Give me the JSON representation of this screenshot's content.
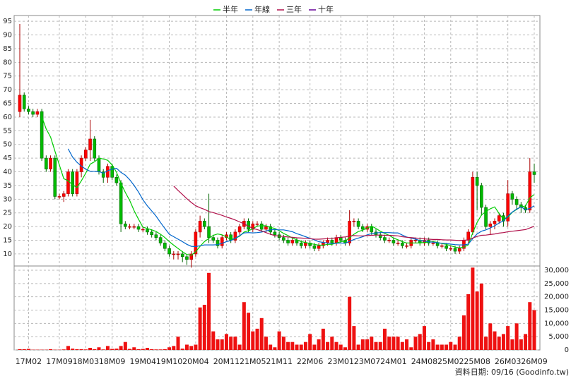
{
  "chart_data": {
    "type": "candlestick",
    "legend": "top",
    "grid": true,
    "source": "資料日期: 09/16 (Goodinfo.tw)",
    "up_color": "#ff0000",
    "down_color": "#00bb00",
    "volume_color": "#ee1111",
    "ylim": [
      5.6,
      97.1
    ],
    "yticks": [
      10,
      15,
      20,
      25,
      30,
      35,
      40,
      45,
      50,
      55,
      60,
      65,
      70,
      75,
      80,
      85,
      90,
      95
    ],
    "y2lim": [
      0,
      31600
    ],
    "y2ticks": [
      0,
      {
        "value": 5000,
        "label": "5,000"
      },
      {
        "value": 10000,
        "label": "10,000"
      },
      {
        "value": 15000,
        "label": "15,000"
      },
      {
        "value": 20000,
        "label": "20,000"
      },
      {
        "value": 25000,
        "label": "25,000"
      },
      {
        "value": 30000,
        "label": "30,000"
      }
    ],
    "categories": [
      null,
      null,
      "17M02",
      null,
      null,
      null,
      null,
      null,
      null,
      "17M09",
      null,
      null,
      null,
      null,
      null,
      "18M03",
      null,
      null,
      null,
      null,
      null,
      "18M09",
      null,
      null,
      null,
      null,
      null,
      null,
      "19M04",
      null,
      null,
      null,
      null,
      null,
      "19M10",
      null,
      null,
      null,
      null,
      null,
      "20M04",
      null,
      null,
      null,
      null,
      null,
      null,
      "20M11",
      null,
      null,
      null,
      null,
      null,
      "21M05",
      null,
      null,
      null,
      null,
      null,
      "21M11",
      null,
      null,
      null,
      null,
      null,
      null,
      "22M06",
      null,
      null,
      null,
      null,
      null,
      null,
      "23M01",
      null,
      null,
      null,
      null,
      null,
      "23M07",
      null,
      null,
      null,
      null,
      null,
      "24M01",
      null,
      null,
      null,
      null,
      null,
      null,
      "24M08",
      null,
      null,
      null,
      null,
      null,
      "25M02",
      null,
      null,
      null,
      null,
      null,
      "25M08",
      null,
      null,
      null,
      null,
      null,
      null,
      "26M03",
      null,
      null,
      null,
      null,
      null,
      "26M09"
    ],
    "open": [
      62,
      68,
      63,
      62,
      61,
      62,
      45,
      41,
      45,
      31,
      31,
      32,
      40,
      32,
      40,
      45,
      48,
      52,
      45,
      40,
      38,
      42,
      38,
      36,
      21,
      20,
      20,
      20,
      19,
      19,
      18,
      17,
      16,
      14,
      12,
      10,
      10,
      10,
      9,
      8,
      10,
      18,
      22,
      20,
      16,
      15,
      13,
      16,
      17,
      15,
      18,
      20,
      22,
      19,
      21,
      21,
      19,
      20,
      18,
      17,
      16,
      15,
      14,
      15,
      14,
      13,
      14,
      13,
      12,
      13,
      14,
      15,
      14,
      16,
      15,
      14,
      22,
      22,
      20,
      19,
      20,
      18,
      17,
      16,
      15,
      15,
      14,
      14,
      13,
      13,
      15,
      15,
      14,
      15,
      14,
      14,
      13,
      13,
      12,
      12,
      11,
      12,
      15,
      18,
      38,
      35,
      27,
      20,
      21,
      22,
      24,
      22,
      32,
      30,
      28,
      27,
      26,
      40
    ],
    "high": [
      94,
      69,
      64,
      63,
      63,
      63,
      46,
      46,
      46,
      32,
      33,
      41,
      41,
      41,
      46,
      49,
      59,
      53,
      46,
      41,
      43,
      43,
      39,
      37,
      22,
      21,
      21,
      21,
      20,
      20,
      19,
      18,
      17,
      15,
      13,
      11,
      11,
      11,
      10,
      11,
      19,
      24,
      23,
      32,
      17,
      16,
      17,
      18,
      18,
      19,
      21,
      23,
      23,
      22,
      22,
      22,
      21,
      21,
      19,
      18,
      17,
      16,
      16,
      16,
      15,
      15,
      15,
      14,
      14,
      15,
      16,
      16,
      17,
      17,
      16,
      26,
      23,
      23,
      21,
      21,
      21,
      19,
      18,
      17,
      16,
      16,
      15,
      15,
      14,
      16,
      16,
      16,
      16,
      16,
      15,
      15,
      14,
      14,
      13,
      13,
      13,
      16,
      19,
      40,
      40,
      36,
      28,
      22,
      23,
      25,
      25,
      37,
      33,
      31,
      29,
      28,
      45,
      43
    ],
    "low": [
      60,
      62,
      61,
      60,
      60,
      44,
      40,
      40,
      30,
      30,
      29,
      31,
      31,
      31,
      38,
      44,
      44,
      44,
      39,
      36,
      36,
      37,
      35,
      18,
      19,
      19,
      19,
      18,
      18,
      17,
      16,
      15,
      13,
      11,
      9,
      8,
      8,
      7,
      6,
      5,
      9,
      16,
      19,
      14,
      14,
      12,
      12,
      15,
      14,
      14,
      17,
      19,
      18,
      18,
      20,
      18,
      18,
      17,
      16,
      15,
      14,
      13,
      13,
      13,
      12,
      12,
      12,
      11,
      11,
      12,
      13,
      13,
      13,
      14,
      13,
      13,
      20,
      19,
      18,
      18,
      17,
      16,
      15,
      14,
      14,
      13,
      13,
      12,
      12,
      12,
      14,
      13,
      13,
      13,
      13,
      12,
      12,
      11,
      11,
      10,
      10,
      11,
      14,
      17,
      26,
      24,
      19,
      17,
      19,
      21,
      20,
      20,
      28,
      26,
      25,
      25,
      25,
      36
    ],
    "close": [
      68,
      63,
      62,
      61,
      62,
      45,
      41,
      45,
      31,
      31,
      32,
      40,
      32,
      40,
      45,
      48,
      52,
      45,
      40,
      38,
      42,
      38,
      36,
      21,
      20,
      20,
      20,
      19,
      19,
      18,
      17,
      16,
      14,
      12,
      10,
      10,
      10,
      9,
      8,
      10,
      18,
      22,
      20,
      16,
      15,
      13,
      16,
      17,
      15,
      18,
      20,
      22,
      19,
      21,
      21,
      19,
      20,
      18,
      17,
      16,
      15,
      14,
      15,
      14,
      13,
      14,
      13,
      12,
      13,
      14,
      15,
      14,
      16,
      15,
      14,
      22,
      22,
      20,
      19,
      20,
      18,
      17,
      16,
      15,
      15,
      14,
      14,
      13,
      13,
      15,
      15,
      14,
      15,
      14,
      14,
      13,
      13,
      12,
      12,
      11,
      12,
      15,
      18,
      38,
      35,
      27,
      20,
      21,
      22,
      24,
      22,
      32,
      30,
      28,
      27,
      26,
      40,
      39
    ],
    "volume": [
      300,
      300,
      400,
      100,
      100,
      100,
      100,
      300,
      100,
      100,
      200,
      1500,
      500,
      300,
      300,
      200,
      800,
      300,
      1000,
      200,
      1500,
      400,
      500,
      1500,
      3000,
      400,
      1000,
      300,
      400,
      800,
      300,
      200,
      200,
      300,
      1000,
      1500,
      5000,
      500,
      2000,
      1500,
      2000,
      16000,
      17000,
      29000,
      7000,
      4000,
      4000,
      6000,
      5000,
      5000,
      2000,
      18000,
      14000,
      7000,
      8000,
      12000,
      5000,
      2000,
      1000,
      7000,
      5000,
      3000,
      3000,
      2000,
      2000,
      3000,
      6000,
      2000,
      4000,
      8000,
      3000,
      5000,
      3000,
      2000,
      1000,
      20000,
      9000,
      2000,
      4000,
      4000,
      5000,
      3000,
      3000,
      8000,
      5000,
      5000,
      5000,
      3000,
      4000,
      1000,
      5000,
      6000,
      9000,
      3000,
      4000,
      2000,
      2000,
      2000,
      3000,
      2000,
      5000,
      13000,
      21000,
      31000,
      22000,
      25000,
      5000,
      10000,
      7000,
      5000,
      6000,
      9000,
      4000,
      10000,
      4000,
      6000,
      18000,
      15000
    ],
    "series": [
      {
        "name": "半年",
        "color": "#00cc00",
        "values": [
          null,
          null,
          null,
          null,
          null,
          60.2,
          55.7,
          52.7,
          47.5,
          42.5,
          37.5,
          36.7,
          35.2,
          34.3,
          36.7,
          39.5,
          42.8,
          43.7,
          45,
          44.7,
          44.2,
          42.5,
          39.8,
          35.8,
          32.5,
          29.5,
          25.8,
          22.7,
          19.8,
          19.3,
          18.8,
          18.2,
          17.2,
          16,
          14.5,
          13.2,
          12,
          10.8,
          9.8,
          9.5,
          10.8,
          12.8,
          14.5,
          15.7,
          16.8,
          17.3,
          17,
          16.2,
          15.3,
          15.7,
          16.5,
          18,
          18.5,
          19.2,
          20.2,
          20.3,
          20.3,
          19.7,
          19.3,
          18.5,
          17.5,
          16.7,
          15.8,
          15.2,
          14.5,
          14.2,
          13.8,
          13.5,
          13.2,
          13.2,
          13.5,
          13.5,
          14,
          14.5,
          14.7,
          16,
          17.2,
          18.2,
          18.7,
          19.5,
          20.2,
          19.3,
          18.3,
          17.5,
          16.8,
          15.8,
          15.2,
          14.5,
          14,
          14,
          14,
          14,
          14.2,
          14.3,
          14.5,
          14.2,
          13.8,
          13.5,
          13,
          12.5,
          12.2,
          12.5,
          13.3,
          17.7,
          21.5,
          24.2,
          25.5,
          26.5,
          27.2,
          24.8,
          22.7,
          23.5,
          25.2,
          26.3,
          27.2,
          27.5,
          30.5,
          31.7
        ]
      },
      {
        "name": "年線",
        "color": "#0066cc",
        "values": [
          null,
          null,
          null,
          null,
          null,
          null,
          null,
          null,
          null,
          null,
          null,
          48.4,
          45.4,
          43.5,
          42.1,
          41,
          40.2,
          40.2,
          40.1,
          39.5,
          40.4,
          41,
          41.3,
          39.8,
          38.8,
          37.1,
          35,
          32.6,
          29.8,
          27.6,
          25.7,
          23.8,
          21.5,
          19.3,
          17.2,
          16.3,
          15.4,
          14.5,
          13.5,
          12.8,
          12.7,
          13,
          13.3,
          13.3,
          13.3,
          13.4,
          13.9,
          14.5,
          14.9,
          15.7,
          16.7,
          17.7,
          17.8,
          17.7,
          17.8,
          18,
          18.4,
          18.8,
          18.9,
          18.8,
          18.8,
          18.5,
          18.1,
          17.4,
          16.9,
          16.3,
          15.7,
          15.1,
          14.5,
          14.2,
          14,
          13.8,
          13.9,
          14,
          13.9,
          14.6,
          15.3,
          15.8,
          16.3,
          17,
          17.4,
          17.7,
          17.8,
          17.8,
          17.8,
          17.7,
          17.7,
          16.9,
          16.2,
          15.8,
          15.4,
          14.9,
          14.7,
          14.4,
          14.3,
          14.1,
          13.9,
          13.8,
          13.6,
          13.4,
          13.3,
          13.3,
          13.6,
          15.6,
          17.3,
          18.3,
          18.8,
          19.5,
          20.3,
          21.3,
          22.1,
          23.8,
          25.3,
          26.4,
          27.2,
          26.2,
          26.6,
          27.6
        ]
      },
      {
        "name": "三年",
        "color": "#b0104a",
        "values": [
          null,
          null,
          null,
          null,
          null,
          null,
          null,
          null,
          null,
          null,
          null,
          null,
          null,
          null,
          null,
          null,
          null,
          null,
          null,
          null,
          null,
          null,
          null,
          null,
          null,
          null,
          null,
          null,
          null,
          null,
          null,
          null,
          null,
          null,
          null,
          34.8,
          33.2,
          31.7,
          30.2,
          28.8,
          27.6,
          26.9,
          26.3,
          25.5,
          25.1,
          24.6,
          24.1,
          23.5,
          23,
          22.4,
          21.7,
          21,
          20.1,
          19.4,
          18.9,
          18.4,
          17.8,
          17.2,
          16.7,
          16.5,
          16.4,
          16.2,
          16.1,
          15.9,
          15.8,
          15.7,
          15.6,
          15.4,
          15.4,
          15.5,
          15.6,
          15.7,
          15.9,
          16.1,
          16.2,
          16.6,
          16.7,
          16.6,
          16.6,
          16.7,
          16.8,
          16.9,
          16.9,
          16.8,
          16.8,
          16.7,
          16.6,
          16.3,
          16.1,
          16,
          15.8,
          15.7,
          15.5,
          15.4,
          15.3,
          15.3,
          15.2,
          15.1,
          15.1,
          15,
          14.9,
          15,
          15.1,
          15.8,
          16.4,
          16.8,
          16.9,
          17.1,
          17.3,
          17.6,
          17.8,
          18.1,
          18.3,
          18.5,
          18.7,
          18.9,
          19.5,
          20.1
        ]
      },
      {
        "name": "十年",
        "color": "#660099",
        "values": [
          null,
          null,
          null,
          null,
          null,
          null,
          null,
          null,
          null,
          null,
          null,
          null,
          null,
          null,
          null,
          null,
          null,
          null,
          null,
          null,
          null,
          null,
          null,
          null,
          null,
          null,
          null,
          null,
          null,
          null,
          null,
          null,
          null,
          null,
          null,
          null,
          null,
          null,
          null,
          null,
          null,
          null,
          null,
          null,
          null,
          null,
          null,
          null,
          null,
          null,
          null,
          null,
          null,
          null,
          null,
          null,
          null,
          null,
          null,
          null,
          null,
          null,
          null,
          null,
          null,
          null,
          null,
          null,
          null,
          null,
          null,
          null,
          null,
          null,
          null,
          null,
          null,
          null,
          null,
          null,
          null,
          null,
          null,
          null,
          null,
          null,
          null,
          null,
          null,
          null,
          null,
          null,
          null,
          null,
          null,
          null,
          null,
          null,
          null,
          null,
          null,
          null,
          null,
          null,
          null,
          null,
          null,
          null,
          null,
          null,
          null,
          null,
          null,
          null,
          null,
          null,
          null,
          null
        ]
      }
    ]
  }
}
